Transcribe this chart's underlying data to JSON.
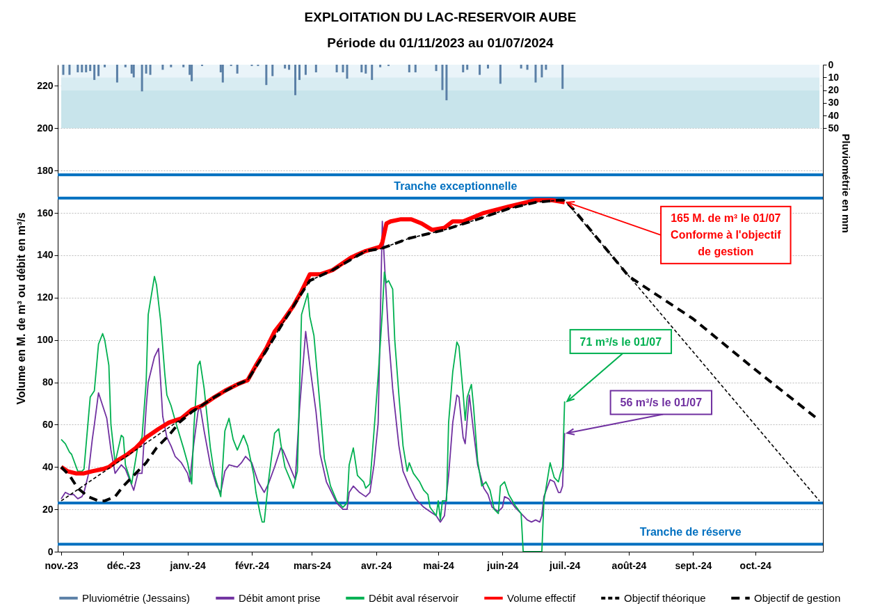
{
  "chart_data": {
    "type": "line",
    "title": "EXPLOITATION DU LAC-RESERVOIR AUBE",
    "subtitle": "Période du 01/11/2023 au 01/07/2024",
    "ylabel": "Volume en M. de m³ ou débit en m³/s",
    "y2label": "Pluviométrie en mm",
    "xlim": [
      "2023-11-01",
      "2024-11-01"
    ],
    "xticks": [
      {
        "value": "2023-11-01",
        "label": "nov.-23"
      },
      {
        "value": "2023-12-01",
        "label": "déc.-23"
      },
      {
        "value": "2024-01-01",
        "label": "janv.-24"
      },
      {
        "value": "2024-02-01",
        "label": "févr.-24"
      },
      {
        "value": "2024-03-01",
        "label": "mars-24"
      },
      {
        "value": "2024-04-01",
        "label": "avr.-24"
      },
      {
        "value": "2024-05-01",
        "label": "mai-24"
      },
      {
        "value": "2024-06-01",
        "label": "juin-24"
      },
      {
        "value": "2024-07-01",
        "label": "juil.-24"
      },
      {
        "value": "2024-08-01",
        "label": "août-24"
      },
      {
        "value": "2024-09-01",
        "label": "sept.-24"
      },
      {
        "value": "2024-10-01",
        "label": "oct.-24"
      }
    ],
    "ylim": [
      0,
      230
    ],
    "yticks": [
      0,
      20,
      40,
      60,
      80,
      100,
      120,
      140,
      160,
      180,
      200,
      220
    ],
    "y2lim": [
      383.3,
      0
    ],
    "y2ticks": [
      0,
      10,
      20,
      30,
      40,
      50
    ],
    "grid": "y",
    "legend": "bottom",
    "series": [
      {
        "name": "Pluviométrie (Jessains)",
        "type": "bar",
        "axis": "y2",
        "color": "#5a7fa6",
        "x": [
          "2023-11-02",
          "2023-11-05",
          "2023-11-09",
          "2023-11-11",
          "2023-11-13",
          "2023-11-15",
          "2023-11-17",
          "2023-11-19",
          "2023-11-22",
          "2023-11-28",
          "2023-12-02",
          "2023-12-05",
          "2023-12-06",
          "2023-12-10",
          "2023-12-12",
          "2023-12-14",
          "2023-12-20",
          "2023-12-24",
          "2023-12-30",
          "2024-01-02",
          "2024-01-03",
          "2024-01-08",
          "2024-01-17",
          "2024-01-18",
          "2024-01-22",
          "2024-01-25",
          "2024-02-01",
          "2024-02-04",
          "2024-02-08",
          "2024-02-11",
          "2024-02-17",
          "2024-02-19",
          "2024-02-22",
          "2024-02-24",
          "2024-02-27",
          "2024-03-03",
          "2024-03-13",
          "2024-03-16",
          "2024-03-18",
          "2024-03-25",
          "2024-03-27",
          "2024-03-30",
          "2024-04-03",
          "2024-04-07",
          "2024-04-17",
          "2024-04-20",
          "2024-04-30",
          "2024-05-03",
          "2024-05-05",
          "2024-05-13",
          "2024-05-15",
          "2024-05-21",
          "2024-05-25",
          "2024-05-31",
          "2024-06-10",
          "2024-06-13",
          "2024-06-17",
          "2024-06-20",
          "2024-06-22",
          "2024-06-30"
        ],
        "values": [
          8,
          8,
          6,
          6,
          6,
          5,
          12,
          9,
          2,
          14,
          2,
          7,
          10,
          21,
          7,
          8,
          4,
          2,
          2,
          8,
          13,
          1,
          6,
          14,
          1,
          7,
          1,
          1,
          16,
          9,
          3,
          4,
          24,
          12,
          8,
          6,
          6,
          6,
          11,
          6,
          7,
          12,
          2,
          1,
          6,
          6,
          5,
          20,
          28,
          6,
          4,
          8,
          3,
          15,
          3,
          4,
          14,
          10,
          4,
          19
        ]
      },
      {
        "name": "Débit amont prise",
        "color": "#7030a0",
        "line_style": "solid",
        "x": [
          "2023-11-01",
          "2023-11-03",
          "2023-11-05",
          "2023-11-07",
          "2023-11-09",
          "2023-11-11",
          "2023-11-12",
          "2023-11-14",
          "2023-11-16",
          "2023-11-17",
          "2023-11-19",
          "2023-11-21",
          "2023-11-23",
          "2023-11-25",
          "2023-11-27",
          "2023-11-30",
          "2023-12-02",
          "2023-12-04",
          "2023-12-06",
          "2023-12-08",
          "2023-12-10",
          "2023-12-12",
          "2023-12-13",
          "2023-12-16",
          "2023-12-18",
          "2023-12-20",
          "2023-12-22",
          "2023-12-24",
          "2023-12-26",
          "2023-12-29",
          "2024-01-01",
          "2024-01-02",
          "2024-01-04",
          "2024-01-06",
          "2024-01-07",
          "2024-01-09",
          "2024-01-12",
          "2024-01-15",
          "2024-01-17",
          "2024-01-19",
          "2024-01-21",
          "2024-01-25",
          "2024-01-27",
          "2024-01-29",
          "2024-02-01",
          "2024-02-04",
          "2024-02-07",
          "2024-02-09",
          "2024-02-12",
          "2024-02-15",
          "2024-02-16",
          "2024-02-19",
          "2024-02-22",
          "2024-02-24",
          "2024-02-27",
          "2024-02-29",
          "2024-03-03",
          "2024-03-05",
          "2024-03-08",
          "2024-03-10",
          "2024-03-13",
          "2024-03-16",
          "2024-03-18",
          "2024-03-19",
          "2024-03-21",
          "2024-03-24",
          "2024-03-27",
          "2024-03-29",
          "2024-03-31",
          "2024-04-02",
          "2024-04-03",
          "2024-04-04",
          "2024-04-05",
          "2024-04-07",
          "2024-04-09",
          "2024-04-12",
          "2024-04-14",
          "2024-04-17",
          "2024-04-20",
          "2024-04-24",
          "2024-04-27",
          "2024-04-30",
          "2024-05-02",
          "2024-05-04",
          "2024-05-06",
          "2024-05-08",
          "2024-05-10",
          "2024-05-11",
          "2024-05-13",
          "2024-05-14",
          "2024-05-16",
          "2024-05-18",
          "2024-05-20",
          "2024-05-23",
          "2024-05-25",
          "2024-05-27",
          "2024-05-30",
          "2024-06-01",
          "2024-06-02",
          "2024-06-04",
          "2024-06-07",
          "2024-06-10",
          "2024-06-13",
          "2024-06-15",
          "2024-06-17",
          "2024-06-19",
          "2024-06-20",
          "2024-06-21",
          "2024-06-24",
          "2024-06-26",
          "2024-06-28",
          "2024-06-29",
          "2024-06-30",
          "2024-07-01"
        ],
        "values": [
          25,
          28,
          27,
          27,
          25,
          26,
          28,
          36,
          53,
          60,
          75,
          69,
          63,
          48,
          37,
          41,
          39,
          34,
          29,
          37,
          37,
          68,
          80,
          92,
          96,
          64,
          54,
          50,
          45,
          42,
          37,
          33,
          51,
          66,
          69,
          57,
          41,
          31,
          28,
          38,
          41,
          40,
          42,
          45,
          42,
          33,
          28,
          32,
          40,
          49,
          48,
          41,
          34,
          67,
          104,
          88,
          66,
          46,
          33,
          29,
          23,
          20,
          20,
          28,
          31,
          28,
          26,
          28,
          41,
          61,
          109,
          156,
          137,
          102,
          77,
          50,
          38,
          31,
          25,
          21,
          19,
          17,
          14,
          17,
          36,
          61,
          74,
          73,
          54,
          51,
          74,
          57,
          41,
          30,
          27,
          21,
          19,
          21,
          26,
          25,
          21,
          18,
          15,
          14,
          15,
          14,
          17,
          26,
          34,
          33,
          28,
          28,
          31,
          56
        ]
      },
      {
        "name": "Débit aval réservoir",
        "color": "#00b050",
        "line_style": "solid",
        "x": [
          "2023-11-01",
          "2023-11-03",
          "2023-11-05",
          "2023-11-06",
          "2023-11-09",
          "2023-11-11",
          "2023-11-12",
          "2023-11-15",
          "2023-11-17",
          "2023-11-19",
          "2023-11-21",
          "2023-11-22",
          "2023-11-24",
          "2023-11-25",
          "2023-11-27",
          "2023-11-30",
          "2023-12-01",
          "2023-12-02",
          "2023-12-05",
          "2023-12-08",
          "2023-12-10",
          "2023-12-12",
          "2023-12-13",
          "2023-12-16",
          "2023-12-17",
          "2023-12-19",
          "2023-12-21",
          "2023-12-22",
          "2023-12-24",
          "2023-12-26",
          "2023-12-30",
          "2024-01-01",
          "2024-01-03",
          "2024-01-04",
          "2024-01-06",
          "2024-01-07",
          "2024-01-09",
          "2024-01-12",
          "2024-01-14",
          "2024-01-17",
          "2024-01-19",
          "2024-01-21",
          "2024-01-23",
          "2024-01-25",
          "2024-01-28",
          "2024-01-30",
          "2024-02-02",
          "2024-02-03",
          "2024-02-05",
          "2024-02-06",
          "2024-02-07",
          "2024-02-09",
          "2024-02-12",
          "2024-02-14",
          "2024-02-15",
          "2024-02-17",
          "2024-02-20",
          "2024-02-21",
          "2024-02-23",
          "2024-02-25",
          "2024-02-28",
          "2024-02-29",
          "2024-03-02",
          "2024-03-05",
          "2024-03-07",
          "2024-03-10",
          "2024-03-13",
          "2024-03-16",
          "2024-03-18",
          "2024-03-19",
          "2024-03-21",
          "2024-03-23",
          "2024-03-26",
          "2024-03-27",
          "2024-03-29",
          "2024-03-31",
          "2024-04-02",
          "2024-04-04",
          "2024-04-05",
          "2024-04-06",
          "2024-04-07",
          "2024-04-09",
          "2024-04-10",
          "2024-04-12",
          "2024-04-14",
          "2024-04-16",
          "2024-04-17",
          "2024-04-19",
          "2024-04-22",
          "2024-04-24",
          "2024-04-26",
          "2024-04-27",
          "2024-04-30",
          "2024-05-01",
          "2024-05-02",
          "2024-05-03",
          "2024-05-05",
          "2024-05-06",
          "2024-05-08",
          "2024-05-10",
          "2024-05-11",
          "2024-05-13",
          "2024-05-14",
          "2024-05-15",
          "2024-05-17",
          "2024-05-18",
          "2024-05-20",
          "2024-05-22",
          "2024-05-24",
          "2024-05-26",
          "2024-05-28",
          "2024-05-30",
          "2024-05-31",
          "2024-06-02",
          "2024-06-04",
          "2024-06-07",
          "2024-06-10",
          "2024-06-11",
          "2024-06-20",
          "2024-06-21",
          "2024-06-23",
          "2024-06-24",
          "2024-06-26",
          "2024-06-27",
          "2024-06-28",
          "2024-06-29",
          "2024-06-30",
          "2024-07-01"
        ],
        "values": [
          53,
          51,
          47,
          46,
          38,
          38,
          39,
          73,
          76,
          98,
          103,
          100,
          88,
          60,
          42,
          55,
          54,
          41,
          32,
          50,
          54,
          80,
          112,
          130,
          126,
          109,
          84,
          74,
          69,
          62,
          49,
          42,
          32,
          58,
          88,
          90,
          77,
          49,
          36,
          26,
          57,
          63,
          53,
          48,
          55,
          50,
          36,
          28,
          18,
          14,
          14,
          33,
          56,
          58,
          51,
          40,
          33,
          30,
          38,
          112,
          122,
          111,
          102,
          68,
          44,
          31,
          24,
          21,
          23,
          41,
          49,
          36,
          33,
          30,
          32,
          57,
          83,
          113,
          132,
          127,
          128,
          124,
          100,
          74,
          50,
          38,
          42,
          37,
          33,
          29,
          27,
          21,
          17,
          24,
          15,
          24,
          24,
          61,
          85,
          99,
          97,
          75,
          62,
          73,
          79,
          69,
          43,
          31,
          33,
          29,
          20,
          18,
          31,
          33,
          27,
          22,
          18,
          0,
          0,
          24,
          36,
          42,
          35,
          34,
          33,
          37,
          40,
          71
        ]
      },
      {
        "name": "Volume effectif",
        "color": "#ff0000",
        "line_style": "solid",
        "x": [
          "2023-11-01",
          "2023-11-04",
          "2023-11-08",
          "2023-11-12",
          "2023-11-16",
          "2023-11-21",
          "2023-11-24",
          "2023-11-28",
          "2023-12-03",
          "2023-12-07",
          "2023-12-12",
          "2023-12-18",
          "2023-12-23",
          "2023-12-29",
          "2024-01-03",
          "2024-01-08",
          "2024-01-14",
          "2024-01-19",
          "2024-01-25",
          "2024-01-30",
          "2024-02-03",
          "2024-02-08",
          "2024-02-12",
          "2024-02-16",
          "2024-02-21",
          "2024-02-25",
          "2024-02-27",
          "2024-02-29",
          "2024-03-05",
          "2024-03-11",
          "2024-03-20",
          "2024-03-27",
          "2024-04-03",
          "2024-04-04",
          "2024-04-06",
          "2024-04-08",
          "2024-04-13",
          "2024-04-18",
          "2024-04-23",
          "2024-04-28",
          "2024-05-04",
          "2024-05-08",
          "2024-05-13",
          "2024-05-23",
          "2024-06-04",
          "2024-06-17",
          "2024-06-25",
          "2024-07-01"
        ],
        "values": [
          40,
          38,
          37,
          37,
          38,
          39,
          40,
          43,
          46,
          49,
          54,
          58,
          61,
          63,
          67,
          69,
          73,
          76,
          79,
          81,
          88,
          96,
          104,
          109,
          116,
          123,
          127,
          131,
          131,
          133,
          139,
          142,
          144,
          146,
          155,
          156,
          157,
          157,
          155,
          152,
          153,
          156,
          156,
          160,
          163,
          166,
          166,
          165
        ]
      },
      {
        "name": "Objectif théorique",
        "color": "#000000",
        "line_style": "dashed",
        "x": [
          "2023-11-01",
          "2023-12-01",
          "2024-01-03",
          "2024-01-14",
          "2024-01-25",
          "2024-01-30",
          "2024-02-08",
          "2024-02-16",
          "2024-02-25",
          "2024-02-29",
          "2024-03-11",
          "2024-03-27",
          "2024-04-03",
          "2024-04-17",
          "2024-05-04",
          "2024-05-20",
          "2024-06-04",
          "2024-06-17",
          "2024-06-28",
          "2024-07-01",
          "2024-11-01"
        ],
        "values": [
          24,
          44,
          66,
          73,
          79,
          81,
          95,
          108,
          122,
          128,
          133,
          142,
          143,
          148,
          152,
          157,
          162,
          165,
          166,
          166,
          24
        ]
      },
      {
        "name": "Objectif de gestion",
        "color": "#000000",
        "line_style": "dashed",
        "x": [
          "2023-11-01",
          "2023-11-05",
          "2023-11-09",
          "2023-11-14",
          "2023-11-19",
          "2023-11-22",
          "2023-11-27",
          "2023-12-01",
          "2023-12-06",
          "2023-12-12",
          "2023-12-17",
          "2023-12-23",
          "2023-12-28",
          "2024-01-03",
          "2024-01-14",
          "2024-01-25",
          "2024-01-30",
          "2024-02-08",
          "2024-02-16",
          "2024-02-25",
          "2024-02-29",
          "2024-03-11",
          "2024-03-27",
          "2024-04-03",
          "2024-04-17",
          "2024-05-04",
          "2024-05-20",
          "2024-06-04",
          "2024-06-17",
          "2024-06-28",
          "2024-07-01",
          "2024-07-05",
          "2024-08-01",
          "2024-09-01",
          "2024-10-01",
          "2024-11-01"
        ],
        "values": [
          40,
          36,
          30,
          26,
          24,
          24,
          26,
          31,
          36,
          42,
          49,
          55,
          61,
          66,
          73,
          79,
          81,
          95,
          108,
          122,
          128,
          133,
          142,
          143,
          148,
          152,
          157,
          162,
          165,
          166,
          166,
          162,
          130,
          110,
          86,
          62
        ]
      }
    ],
    "ref_lines": [
      {
        "axis": "y",
        "value": 178,
        "color": "#0070c0"
      },
      {
        "axis": "y",
        "value": 167,
        "label": "Tranche exceptionnelle",
        "color": "#0070c0"
      },
      {
        "axis": "y",
        "value": 23,
        "color": "#0070c0"
      },
      {
        "axis": "y",
        "value": 3.5,
        "label": "Tranche de réserve",
        "color": "#0070c0"
      }
    ],
    "bands": [
      {
        "axis": "y2",
        "from": 0,
        "to": 10,
        "color": "#eaf4f9"
      },
      {
        "axis": "y2",
        "from": 10,
        "to": 20,
        "color": "#d8ecf2"
      },
      {
        "axis": "y2",
        "from": 20,
        "to": 50,
        "color": "#c8e4eb"
      }
    ],
    "annotations": [
      {
        "text": "165 M. de m³ le 01/07\nConforme à l'objectif\nde gestion",
        "x": "2024-07-01",
        "y": 165
      },
      {
        "text": "71 m³/s le 01/07",
        "x": "2024-07-01",
        "y": 71
      },
      {
        "text": "56 m³/s le 01/07",
        "x": "2024-07-01",
        "y": 56
      }
    ]
  }
}
